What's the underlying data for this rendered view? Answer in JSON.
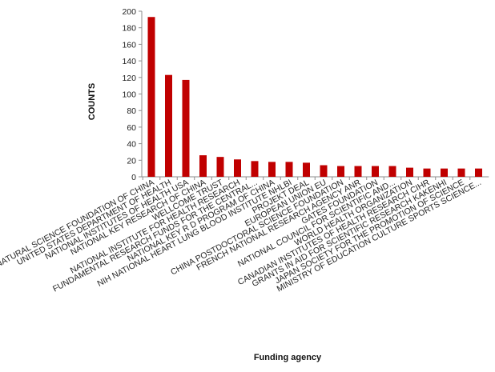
{
  "chart_data": {
    "type": "bar",
    "title": "",
    "xlabel": "Funding agency",
    "ylabel": "COUNTS",
    "ylim": [
      0,
      200
    ],
    "yticks": [
      0,
      20,
      40,
      60,
      80,
      100,
      120,
      140,
      160,
      180,
      200
    ],
    "grid": false,
    "legend": "none",
    "bar_color": "#c00000",
    "categories": [
      "NATIONAL NATURAL SCIENCE FOUNDATION OF CHINA",
      "UNITED STATES DEPARTMENT OF HEALTH",
      "NATIONAL INSTITUTES OF HEALTH USA",
      "NATIONAL KEY RESEARCH  OF CHINA",
      "WELLCOME TRUST",
      "NATIONAL INSTITUTE FOR HEALTH RESEARCH",
      "FUNDAMENTAL RESEARCH FUNDS FOR THE CENTRAL...",
      "NATIONAL KEY R D PROGRAM OF CHINA",
      "NIH NATIONAL HEART LUNG BLOOD INSTITUTE NHLBI",
      "PROJEKT DEAL",
      "EUROPEAN UNION EU",
      "CHINA POSTDOCTORAL SCIENCE FOUNDATION",
      "FRENCH NATIONAL RESEARCH AGENCY ANR",
      "GATES FOUNDATION",
      "NATIONAL COUNCIL FOR SCIENTIFIC AND...",
      "WORLD HEALTH ORGANIZATION",
      "CANADIAN INSTITUTES OF HEALTH RESEARCH CIHR",
      "GRANTS IN AID FOR SCIENTIFIC RESEARCH KAKENHI",
      "JAPAN SOCIETY FOR THE PROMOTION OF SCIENCE",
      "MINISTRY OF EDUCATION CULTURE SPORTS SCIENCE..."
    ],
    "values": [
      193,
      123,
      117,
      26,
      24,
      21,
      19,
      18,
      18,
      17,
      14,
      13,
      13,
      13,
      13,
      11,
      10,
      10,
      10,
      10
    ]
  }
}
